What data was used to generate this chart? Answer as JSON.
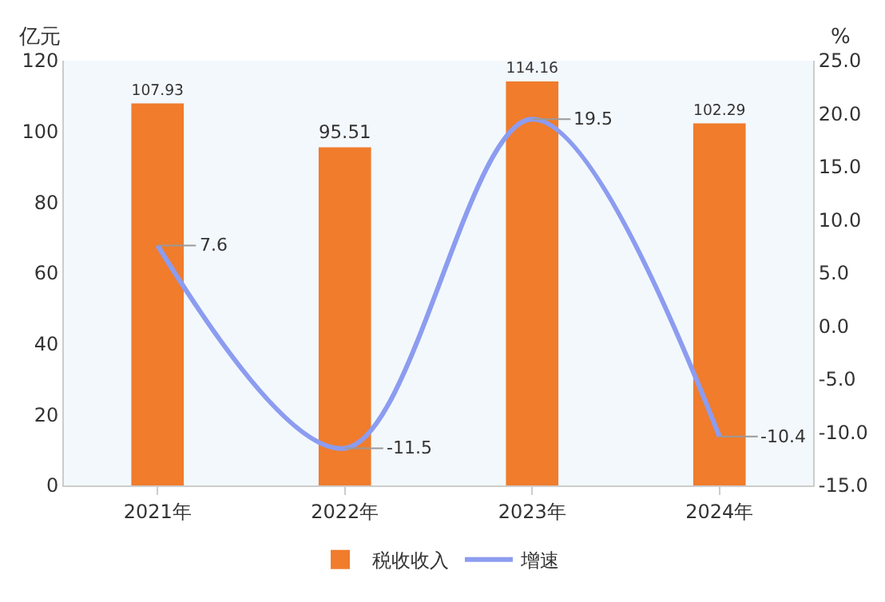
{
  "chart_data": {
    "type": "bar",
    "categories": [
      "2021年",
      "2022年",
      "2023年",
      "2024年"
    ],
    "series": [
      {
        "name": "税收收入",
        "color": "#f07c2c",
        "values": [
          107.93,
          95.51,
          114.16,
          102.29
        ]
      },
      {
        "name": "增速",
        "type": "line",
        "axis": "y2",
        "color": "#8c9cf0",
        "values": [
          7.6,
          -11.5,
          19.5,
          -10.4
        ]
      }
    ],
    "ylabel": "亿元",
    "y2label": "%",
    "ylim": [
      0,
      120
    ],
    "yticks": [
      0,
      20,
      40,
      60,
      80,
      100,
      120
    ],
    "y2lim": [
      -15,
      25
    ],
    "y2ticks": [
      {
        "value": -15,
        "label": "-15.0"
      },
      {
        "value": -10,
        "label": "-10.0"
      },
      {
        "value": -5,
        "label": "-5.0"
      },
      {
        "value": 0,
        "label": "0.0"
      },
      {
        "value": 5,
        "label": "5.0"
      },
      {
        "value": 10,
        "label": "10.0"
      },
      {
        "value": 15,
        "label": "15.0"
      },
      {
        "value": 20,
        "label": "20.0"
      },
      {
        "value": 25,
        "label": "25.0"
      }
    ],
    "data_labels": true,
    "grid": false,
    "legend": "bottom",
    "marker": "none"
  }
}
